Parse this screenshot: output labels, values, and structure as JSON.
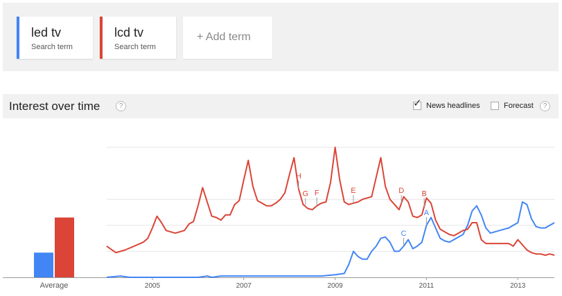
{
  "terms": [
    {
      "name": "led tv",
      "subtitle": "Search term",
      "color": "#4285f4"
    },
    {
      "name": "lcd tv",
      "subtitle": "Search term",
      "color": "#db4437"
    }
  ],
  "add_term_label": "+ Add term",
  "section": {
    "title": "Interest over time",
    "help_glyph": "?",
    "news_headlines": {
      "label": "News headlines",
      "checked": true
    },
    "forecast": {
      "label": "Forecast",
      "checked": false
    }
  },
  "chart_data": {
    "type": "line",
    "x_tick_labels": [
      "2005",
      "2007",
      "2009",
      "2011",
      "2013"
    ],
    "x_range": [
      2004.0,
      2013.8
    ],
    "y_range": [
      0,
      100
    ],
    "grid": true,
    "average_label": "Average",
    "average_values": [
      {
        "series": "led tv",
        "value": 19
      },
      {
        "series": "lcd tv",
        "value": 46
      }
    ],
    "series": [
      {
        "name": "led tv",
        "color": "#4285f4",
        "points": [
          [
            2004.0,
            0
          ],
          [
            2004.3,
            1
          ],
          [
            2004.5,
            0
          ],
          [
            2005.0,
            0
          ],
          [
            2005.5,
            0
          ],
          [
            2006.0,
            0
          ],
          [
            2006.2,
            1
          ],
          [
            2006.3,
            0
          ],
          [
            2006.5,
            1
          ],
          [
            2006.8,
            1
          ],
          [
            2007.0,
            1
          ],
          [
            2007.5,
            1
          ],
          [
            2008.0,
            1
          ],
          [
            2008.3,
            1
          ],
          [
            2008.7,
            1
          ],
          [
            2009.0,
            2
          ],
          [
            2009.2,
            3
          ],
          [
            2009.3,
            10
          ],
          [
            2009.4,
            20
          ],
          [
            2009.5,
            16
          ],
          [
            2009.6,
            14
          ],
          [
            2009.7,
            14
          ],
          [
            2009.8,
            20
          ],
          [
            2009.9,
            24
          ],
          [
            2010.0,
            30
          ],
          [
            2010.1,
            31
          ],
          [
            2010.2,
            27
          ],
          [
            2010.3,
            20
          ],
          [
            2010.4,
            20
          ],
          [
            2010.5,
            24
          ],
          [
            2010.6,
            29
          ],
          [
            2010.7,
            22
          ],
          [
            2010.8,
            24
          ],
          [
            2010.9,
            27
          ],
          [
            2011.0,
            40
          ],
          [
            2011.1,
            46
          ],
          [
            2011.2,
            38
          ],
          [
            2011.3,
            30
          ],
          [
            2011.4,
            28
          ],
          [
            2011.5,
            27
          ],
          [
            2011.6,
            29
          ],
          [
            2011.7,
            31
          ],
          [
            2011.8,
            33
          ],
          [
            2011.9,
            40
          ],
          [
            2012.0,
            51
          ],
          [
            2012.1,
            55
          ],
          [
            2012.2,
            48
          ],
          [
            2012.3,
            38
          ],
          [
            2012.4,
            34
          ],
          [
            2012.5,
            35
          ],
          [
            2012.6,
            36
          ],
          [
            2012.7,
            37
          ],
          [
            2012.8,
            38
          ],
          [
            2012.9,
            40
          ],
          [
            2013.0,
            42
          ],
          [
            2013.1,
            58
          ],
          [
            2013.2,
            56
          ],
          [
            2013.3,
            45
          ],
          [
            2013.4,
            39
          ],
          [
            2013.5,
            38
          ],
          [
            2013.6,
            38
          ],
          [
            2013.7,
            40
          ],
          [
            2013.8,
            42
          ]
        ]
      },
      {
        "name": "lcd tv",
        "color": "#db4437",
        "points": [
          [
            2004.0,
            24
          ],
          [
            2004.2,
            19
          ],
          [
            2004.4,
            21
          ],
          [
            2004.6,
            24
          ],
          [
            2004.8,
            27
          ],
          [
            2004.9,
            30
          ],
          [
            2005.0,
            38
          ],
          [
            2005.1,
            47
          ],
          [
            2005.2,
            42
          ],
          [
            2005.3,
            36
          ],
          [
            2005.4,
            35
          ],
          [
            2005.5,
            34
          ],
          [
            2005.6,
            35
          ],
          [
            2005.7,
            36
          ],
          [
            2005.8,
            41
          ],
          [
            2005.9,
            43
          ],
          [
            2006.0,
            55
          ],
          [
            2006.1,
            69
          ],
          [
            2006.2,
            58
          ],
          [
            2006.3,
            47
          ],
          [
            2006.4,
            46
          ],
          [
            2006.5,
            44
          ],
          [
            2006.6,
            48
          ],
          [
            2006.7,
            48
          ],
          [
            2006.8,
            56
          ],
          [
            2006.9,
            59
          ],
          [
            2007.0,
            75
          ],
          [
            2007.1,
            90
          ],
          [
            2007.2,
            70
          ],
          [
            2007.3,
            59
          ],
          [
            2007.4,
            57
          ],
          [
            2007.5,
            55
          ],
          [
            2007.6,
            55
          ],
          [
            2007.7,
            57
          ],
          [
            2007.8,
            60
          ],
          [
            2007.9,
            65
          ],
          [
            2008.0,
            79
          ],
          [
            2008.1,
            92
          ],
          [
            2008.2,
            68
          ],
          [
            2008.3,
            56
          ],
          [
            2008.4,
            53
          ],
          [
            2008.5,
            52
          ],
          [
            2008.6,
            55
          ],
          [
            2008.7,
            57
          ],
          [
            2008.8,
            58
          ],
          [
            2008.9,
            73
          ],
          [
            2009.0,
            100
          ],
          [
            2009.1,
            75
          ],
          [
            2009.2,
            58
          ],
          [
            2009.3,
            56
          ],
          [
            2009.4,
            57
          ],
          [
            2009.5,
            58
          ],
          [
            2009.6,
            60
          ],
          [
            2009.7,
            61
          ],
          [
            2009.8,
            62
          ],
          [
            2009.9,
            77
          ],
          [
            2010.0,
            92
          ],
          [
            2010.1,
            70
          ],
          [
            2010.2,
            60
          ],
          [
            2010.3,
            56
          ],
          [
            2010.4,
            52
          ],
          [
            2010.5,
            62
          ],
          [
            2010.6,
            58
          ],
          [
            2010.7,
            47
          ],
          [
            2010.8,
            46
          ],
          [
            2010.9,
            48
          ],
          [
            2011.0,
            61
          ],
          [
            2011.1,
            57
          ],
          [
            2011.2,
            44
          ],
          [
            2011.3,
            37
          ],
          [
            2011.4,
            35
          ],
          [
            2011.5,
            33
          ],
          [
            2011.6,
            32
          ],
          [
            2011.7,
            34
          ],
          [
            2011.8,
            36
          ],
          [
            2011.9,
            37
          ],
          [
            2012.0,
            42
          ],
          [
            2012.1,
            42
          ],
          [
            2012.2,
            29
          ],
          [
            2012.3,
            26
          ],
          [
            2012.4,
            26
          ],
          [
            2012.5,
            26
          ],
          [
            2012.6,
            26
          ],
          [
            2012.7,
            26
          ],
          [
            2012.8,
            26
          ],
          [
            2012.9,
            24
          ],
          [
            2013.0,
            29
          ],
          [
            2013.1,
            25
          ],
          [
            2013.2,
            21
          ],
          [
            2013.3,
            19
          ],
          [
            2013.4,
            18
          ],
          [
            2013.5,
            18
          ],
          [
            2013.6,
            17
          ],
          [
            2013.7,
            18
          ],
          [
            2013.8,
            17
          ]
        ]
      }
    ],
    "annotations": [
      {
        "label": "H",
        "x": 2008.2,
        "series": "lcd tv"
      },
      {
        "label": "G",
        "x": 2008.35,
        "series": "lcd tv"
      },
      {
        "label": "F",
        "x": 2008.6,
        "series": "lcd tv"
      },
      {
        "label": "E",
        "x": 2009.4,
        "series": "lcd tv"
      },
      {
        "label": "D",
        "x": 2010.45,
        "series": "lcd tv"
      },
      {
        "label": "B",
        "x": 2010.95,
        "series": "lcd tv"
      },
      {
        "label": "A",
        "x": 2011.0,
        "series": "led tv"
      },
      {
        "label": "C",
        "x": 2010.5,
        "series": "led tv"
      }
    ]
  }
}
